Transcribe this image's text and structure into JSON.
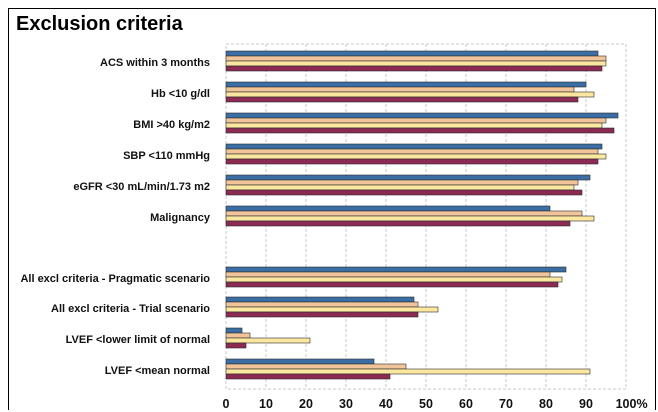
{
  "chart_data": {
    "type": "bar",
    "orientation": "horizontal",
    "title": "Exclusion criteria",
    "unit_label": "%",
    "xlim": [
      0,
      100
    ],
    "xticks": [
      "0",
      "10",
      "20",
      "30",
      "40",
      "50",
      "60",
      "70",
      "80",
      "90",
      "100"
    ],
    "grid": true,
    "categories": [
      "ACS  within  3 months",
      "Hb <10 g/dl",
      "BMI >40 kg/m2",
      "SBP <110 mmHg",
      "eGFR <30 mL/min/1.73 m2",
      "Malignancy",
      "",
      "All excl criteria - Pragmatic scenario",
      "All excl criteria - Trial scenario",
      "LVEF <lower limit of normal",
      "LVEF <mean normal"
    ],
    "series": [
      {
        "color": "#3A6EA5",
        "values": [
          93,
          90,
          98,
          94,
          91,
          81,
          null,
          85,
          47,
          4,
          37
        ]
      },
      {
        "color": "#F2C49A",
        "values": [
          95,
          87,
          95,
          93,
          88,
          89,
          null,
          81,
          48,
          6,
          45
        ]
      },
      {
        "color": "#FBE7A0",
        "values": [
          95,
          92,
          94,
          95,
          87,
          92,
          null,
          84,
          53,
          21,
          91
        ]
      },
      {
        "color": "#8B2A52",
        "values": [
          94,
          88,
          97,
          93,
          89,
          86,
          null,
          83,
          48,
          5,
          41
        ]
      }
    ]
  }
}
